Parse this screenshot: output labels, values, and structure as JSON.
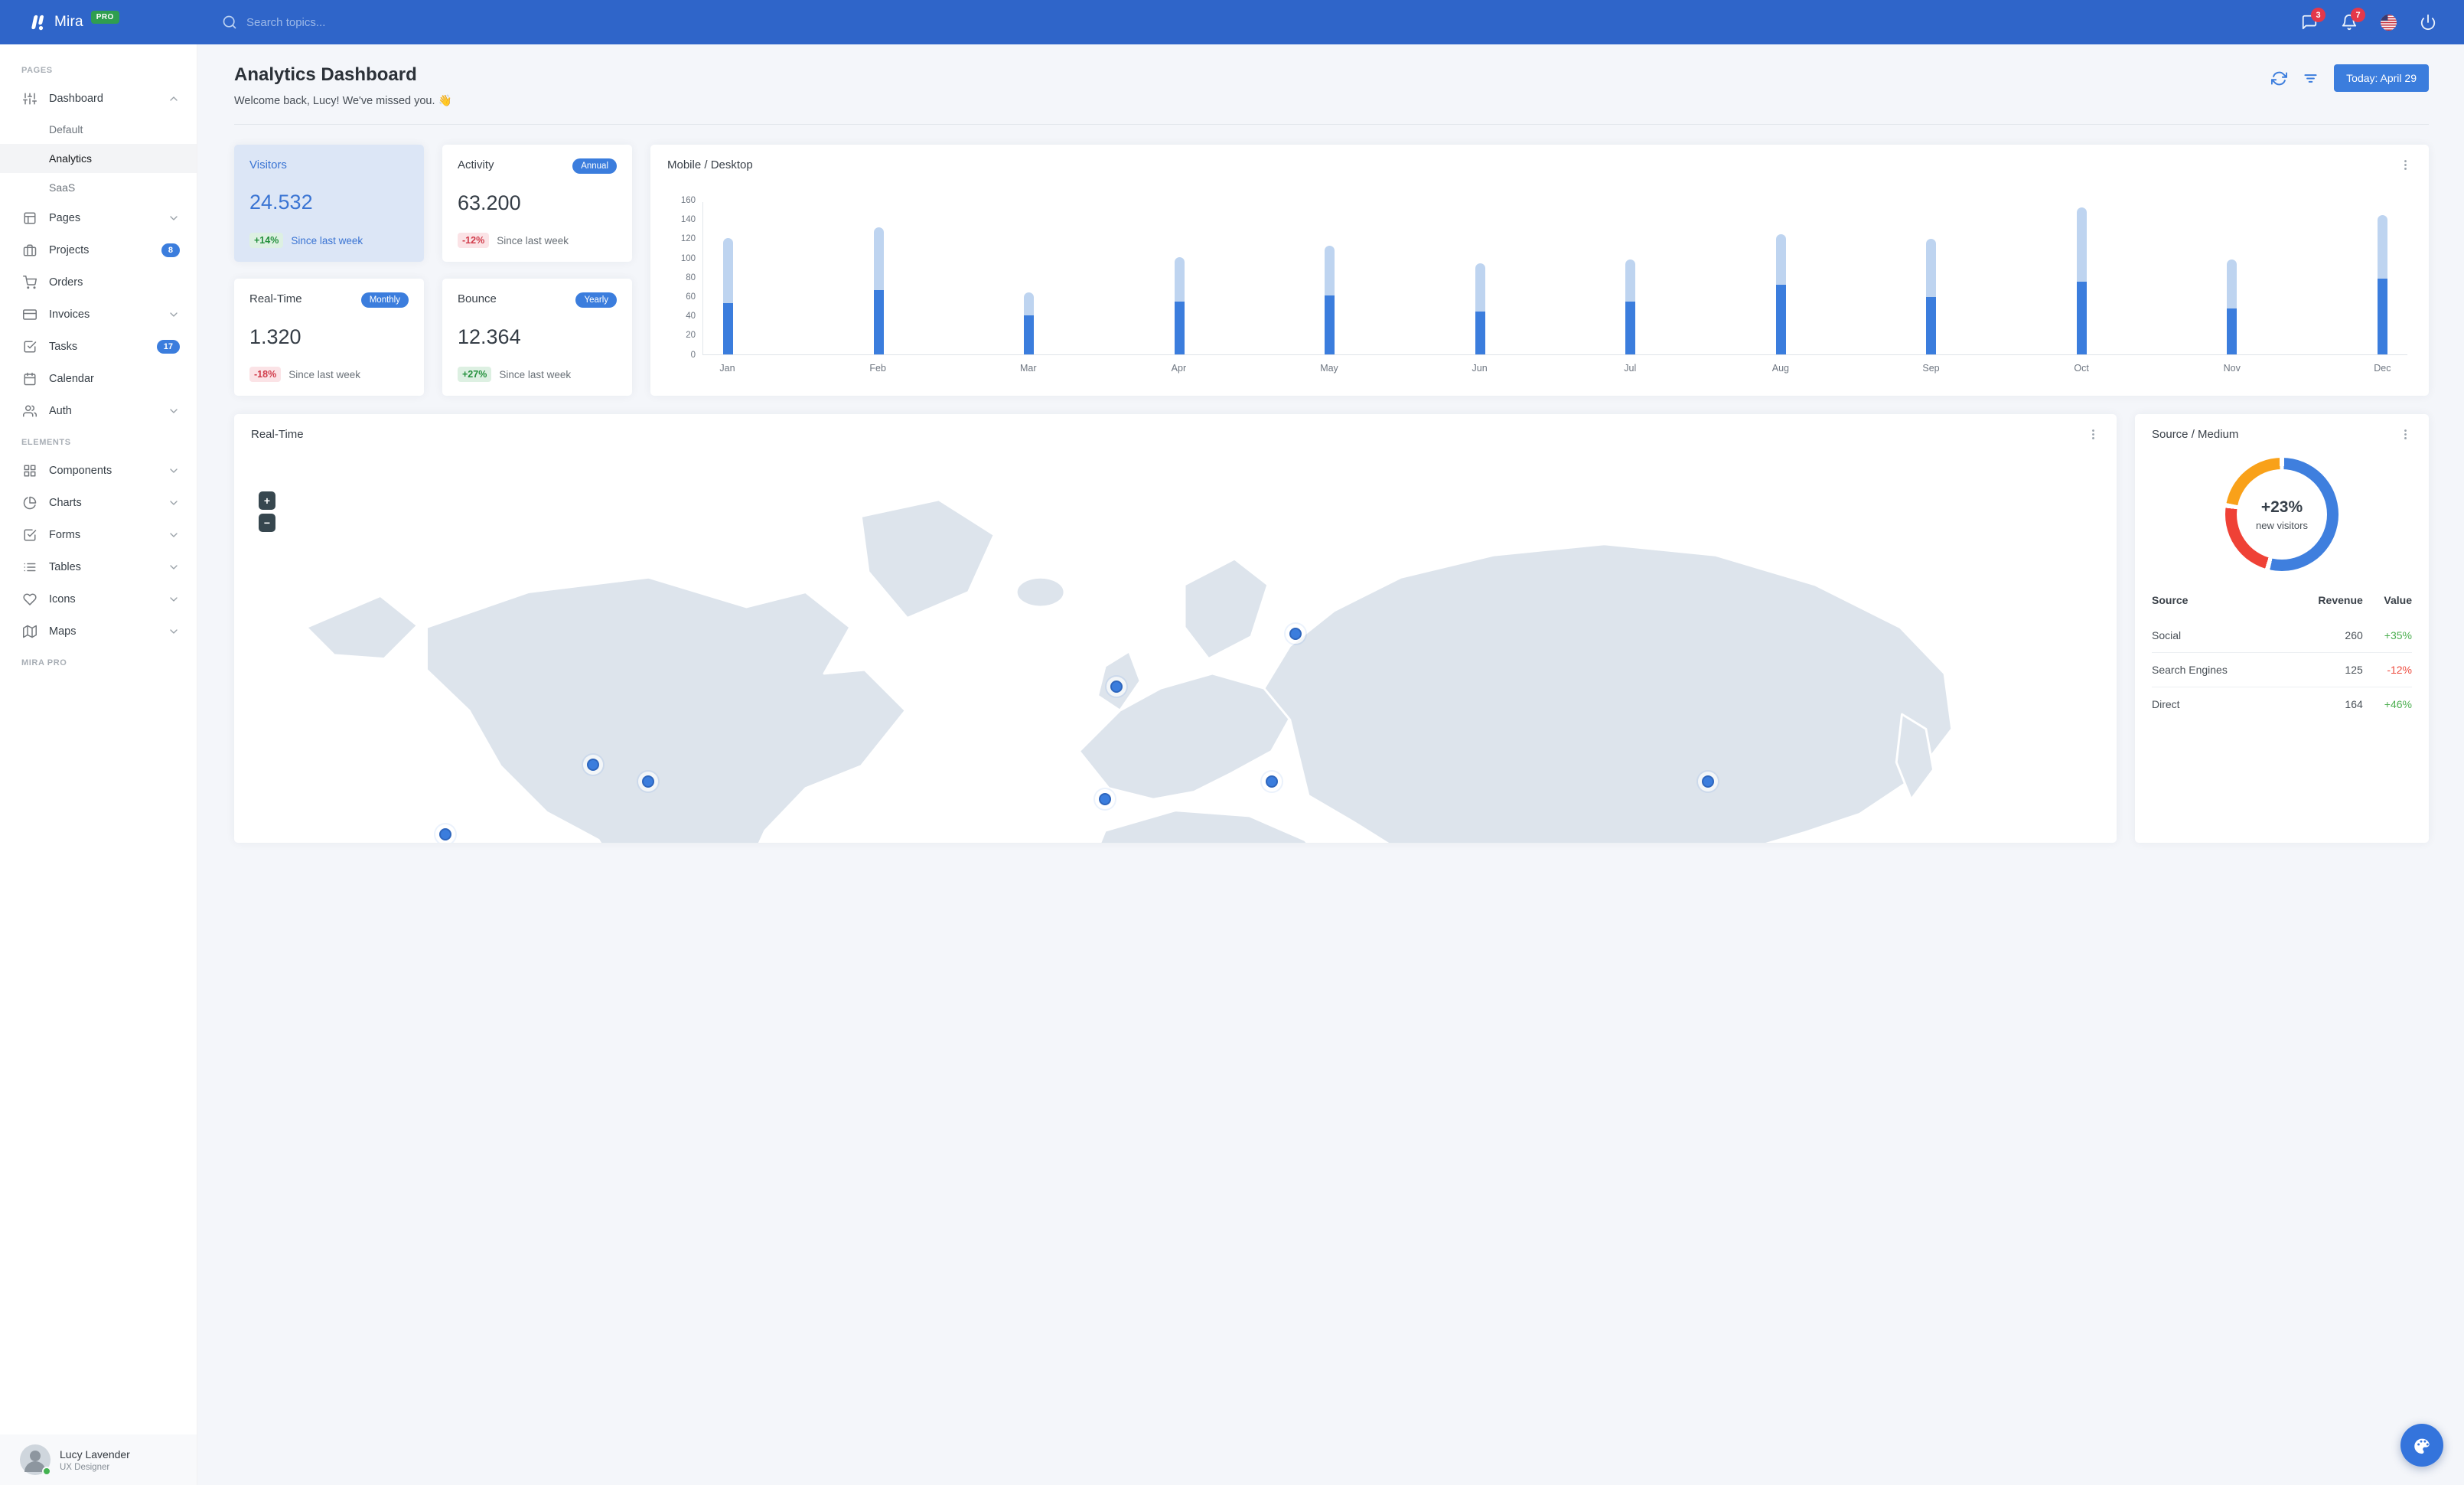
{
  "navbar": {
    "logo": "Mira",
    "logo_badge": "PRO",
    "search_placeholder": "Search topics...",
    "messages_badge": "3",
    "notifications_badge": "7"
  },
  "sidebar": {
    "sections": [
      {
        "label": "PAGES",
        "items": [
          {
            "label": "Dashboard",
            "icon": "sliders-icon",
            "chevron": "up",
            "children": [
              {
                "label": "Default",
                "active": false
              },
              {
                "label": "Analytics",
                "active": true
              },
              {
                "label": "SaaS",
                "active": false
              }
            ]
          },
          {
            "label": "Pages",
            "icon": "layout-icon",
            "chevron": "down"
          },
          {
            "label": "Projects",
            "icon": "briefcase-icon",
            "badge": "8"
          },
          {
            "label": "Orders",
            "icon": "cart-icon"
          },
          {
            "label": "Invoices",
            "icon": "credit-card-icon",
            "chevron": "down"
          },
          {
            "label": "Tasks",
            "icon": "check-square-icon",
            "badge": "17"
          },
          {
            "label": "Calendar",
            "icon": "calendar-icon"
          },
          {
            "label": "Auth",
            "icon": "users-icon",
            "chevron": "down"
          }
        ]
      },
      {
        "label": "ELEMENTS",
        "items": [
          {
            "label": "Components",
            "icon": "grid-icon",
            "chevron": "down"
          },
          {
            "label": "Charts",
            "icon": "pie-chart-icon",
            "chevron": "down"
          },
          {
            "label": "Forms",
            "icon": "check-square-icon",
            "chevron": "down"
          },
          {
            "label": "Tables",
            "icon": "list-icon",
            "chevron": "down"
          },
          {
            "label": "Icons",
            "icon": "heart-icon",
            "chevron": "down"
          },
          {
            "label": "Maps",
            "icon": "map-icon",
            "chevron": "down"
          }
        ]
      },
      {
        "label": "MIRA PRO",
        "items": []
      }
    ],
    "user": {
      "name": "Lucy Lavender",
      "role": "UX Designer",
      "status": "online"
    }
  },
  "header": {
    "title": "Analytics Dashboard",
    "subtitle": "Welcome back, Lucy! We've missed you. 👋",
    "date_button": "Today: April 29"
  },
  "stats": [
    {
      "title": "Visitors",
      "value": "24.532",
      "change": "+14%",
      "change_dir": "up",
      "note": "Since last week",
      "variant": "highlight"
    },
    {
      "title": "Activity",
      "value": "63.200",
      "change": "-12%",
      "change_dir": "down",
      "note": "Since last week",
      "tag": "Annual"
    },
    {
      "title": "Real-Time",
      "value": "1.320",
      "change": "-18%",
      "change_dir": "down",
      "note": "Since last week",
      "tag": "Monthly"
    },
    {
      "title": "Bounce",
      "value": "12.364",
      "change": "+27%",
      "change_dir": "up",
      "note": "Since last week",
      "tag": "Yearly"
    }
  ],
  "chart_data": [
    {
      "type": "bar",
      "title": "Mobile / Desktop",
      "stacked": true,
      "categories": [
        "Jan",
        "Feb",
        "Mar",
        "Apr",
        "May",
        "Jun",
        "Jul",
        "Aug",
        "Sep",
        "Oct",
        "Nov",
        "Dec"
      ],
      "series": [
        {
          "name": "Mobile",
          "color": "#3b7ddd",
          "values": [
            54,
            67,
            41,
            55,
            62,
            45,
            55,
            73,
            60,
            76,
            48,
            79
          ]
        },
        {
          "name": "Desktop",
          "color": "#bed4f0",
          "values": [
            68,
            66,
            24,
            47,
            52,
            50,
            44,
            53,
            61,
            78,
            51,
            67
          ]
        }
      ],
      "ylabel": "",
      "xlabel": "",
      "ylim": [
        0,
        160
      ],
      "yticks": [
        160,
        140,
        120,
        100,
        80,
        60,
        40,
        20,
        0
      ],
      "grid": false,
      "legend": "none"
    },
    {
      "type": "pie",
      "title": "Source / Medium",
      "center_value": "+23%",
      "center_label": "new visitors",
      "slices": [
        {
          "label": "blue",
          "value": 55,
          "color": "#3f7fde"
        },
        {
          "label": "red",
          "value": 23,
          "color": "#ef4136"
        },
        {
          "label": "orange",
          "value": 22,
          "color": "#f9a119"
        }
      ]
    }
  ],
  "map": {
    "title": "Real-Time",
    "zoom_in": "+",
    "zoom_out": "−",
    "markers": [
      {
        "x": 10.5,
        "y": 44
      },
      {
        "x": 18.5,
        "y": 36
      },
      {
        "x": 21.5,
        "y": 38
      },
      {
        "x": 46.8,
        "y": 27
      },
      {
        "x": 56.5,
        "y": 21
      },
      {
        "x": 46.2,
        "y": 40
      },
      {
        "x": 55.2,
        "y": 38
      },
      {
        "x": 66.8,
        "y": 50
      },
      {
        "x": 78.8,
        "y": 38
      }
    ]
  },
  "source_table": {
    "headers": [
      "Source",
      "Revenue",
      "Value"
    ],
    "rows": [
      {
        "source": "Social",
        "revenue": "260",
        "value": "+35%",
        "dir": "up"
      },
      {
        "source": "Search Engines",
        "revenue": "125",
        "value": "-12%",
        "dir": "down"
      },
      {
        "source": "Direct",
        "revenue": "164",
        "value": "+46%",
        "dir": "up"
      }
    ]
  }
}
